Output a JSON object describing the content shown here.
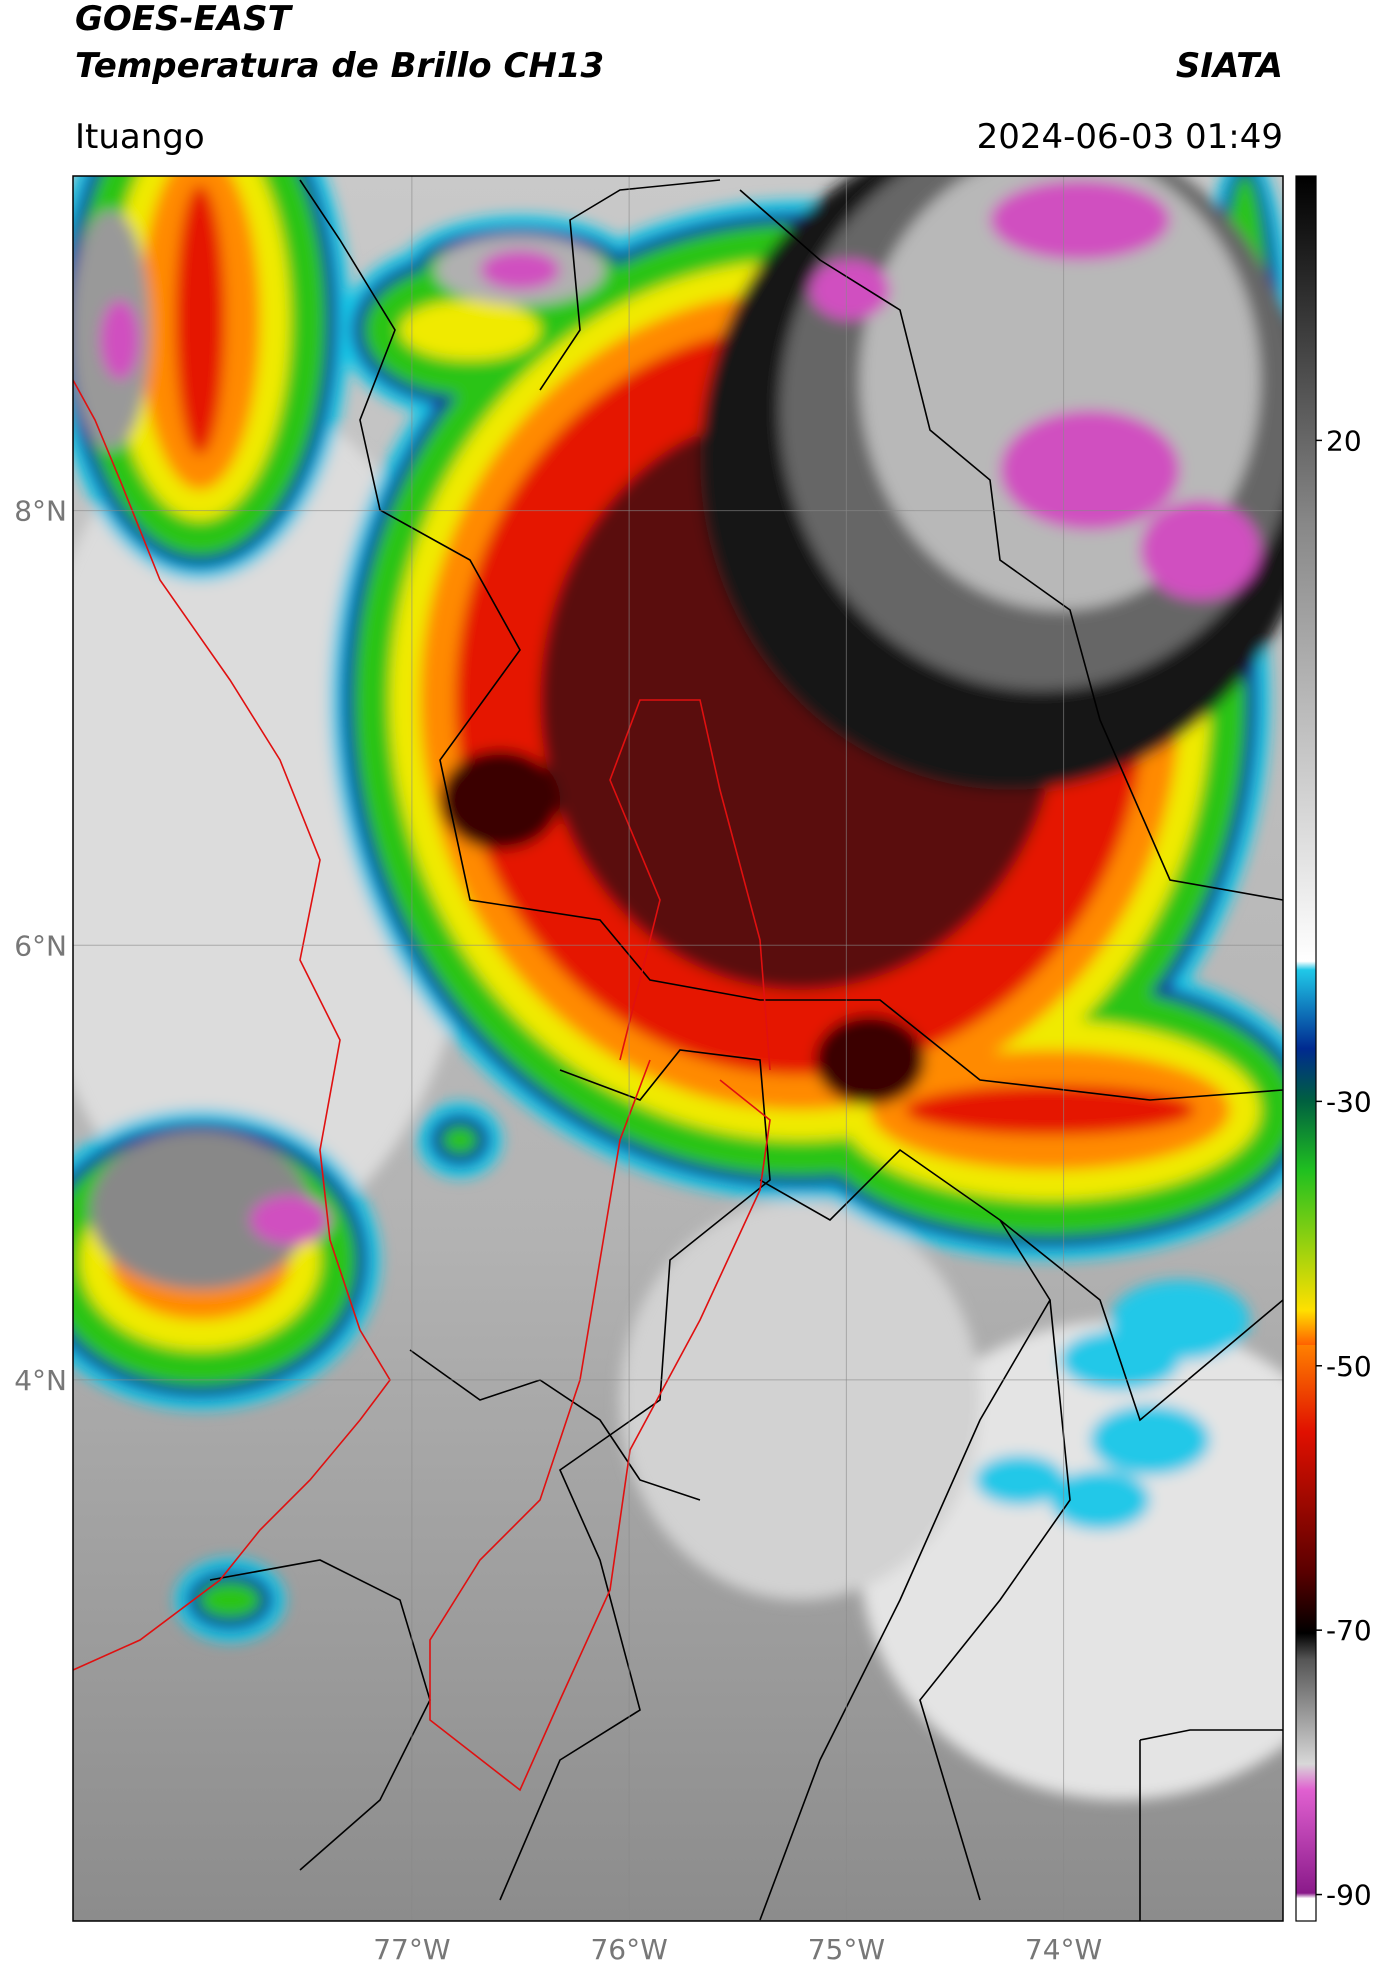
{
  "header": {
    "title": "GOES-EAST",
    "subtitle": "Temperatura de Brillo CH13",
    "org": "SIATA",
    "location": "Ituango",
    "datetime": "2024-06-03 01:49"
  },
  "map": {
    "latlim": [
      1.51,
      9.54
    ],
    "lonlim": [
      -78.56,
      -72.99
    ],
    "latticks": [
      {
        "value": 8,
        "label": "8°N"
      },
      {
        "value": 6,
        "label": "6°N"
      },
      {
        "value": 4,
        "label": "4°N"
      }
    ],
    "lonticks": [
      {
        "value": -77,
        "label": "77°W"
      },
      {
        "value": -76,
        "label": "76°W"
      },
      {
        "value": -75,
        "label": "75°W"
      },
      {
        "value": -74,
        "label": "74°W"
      }
    ],
    "grid": true
  },
  "colorbar": {
    "lim": [
      -92,
      40
    ],
    "ticks": [
      20,
      -30,
      -50,
      -70,
      -90
    ]
  }
}
